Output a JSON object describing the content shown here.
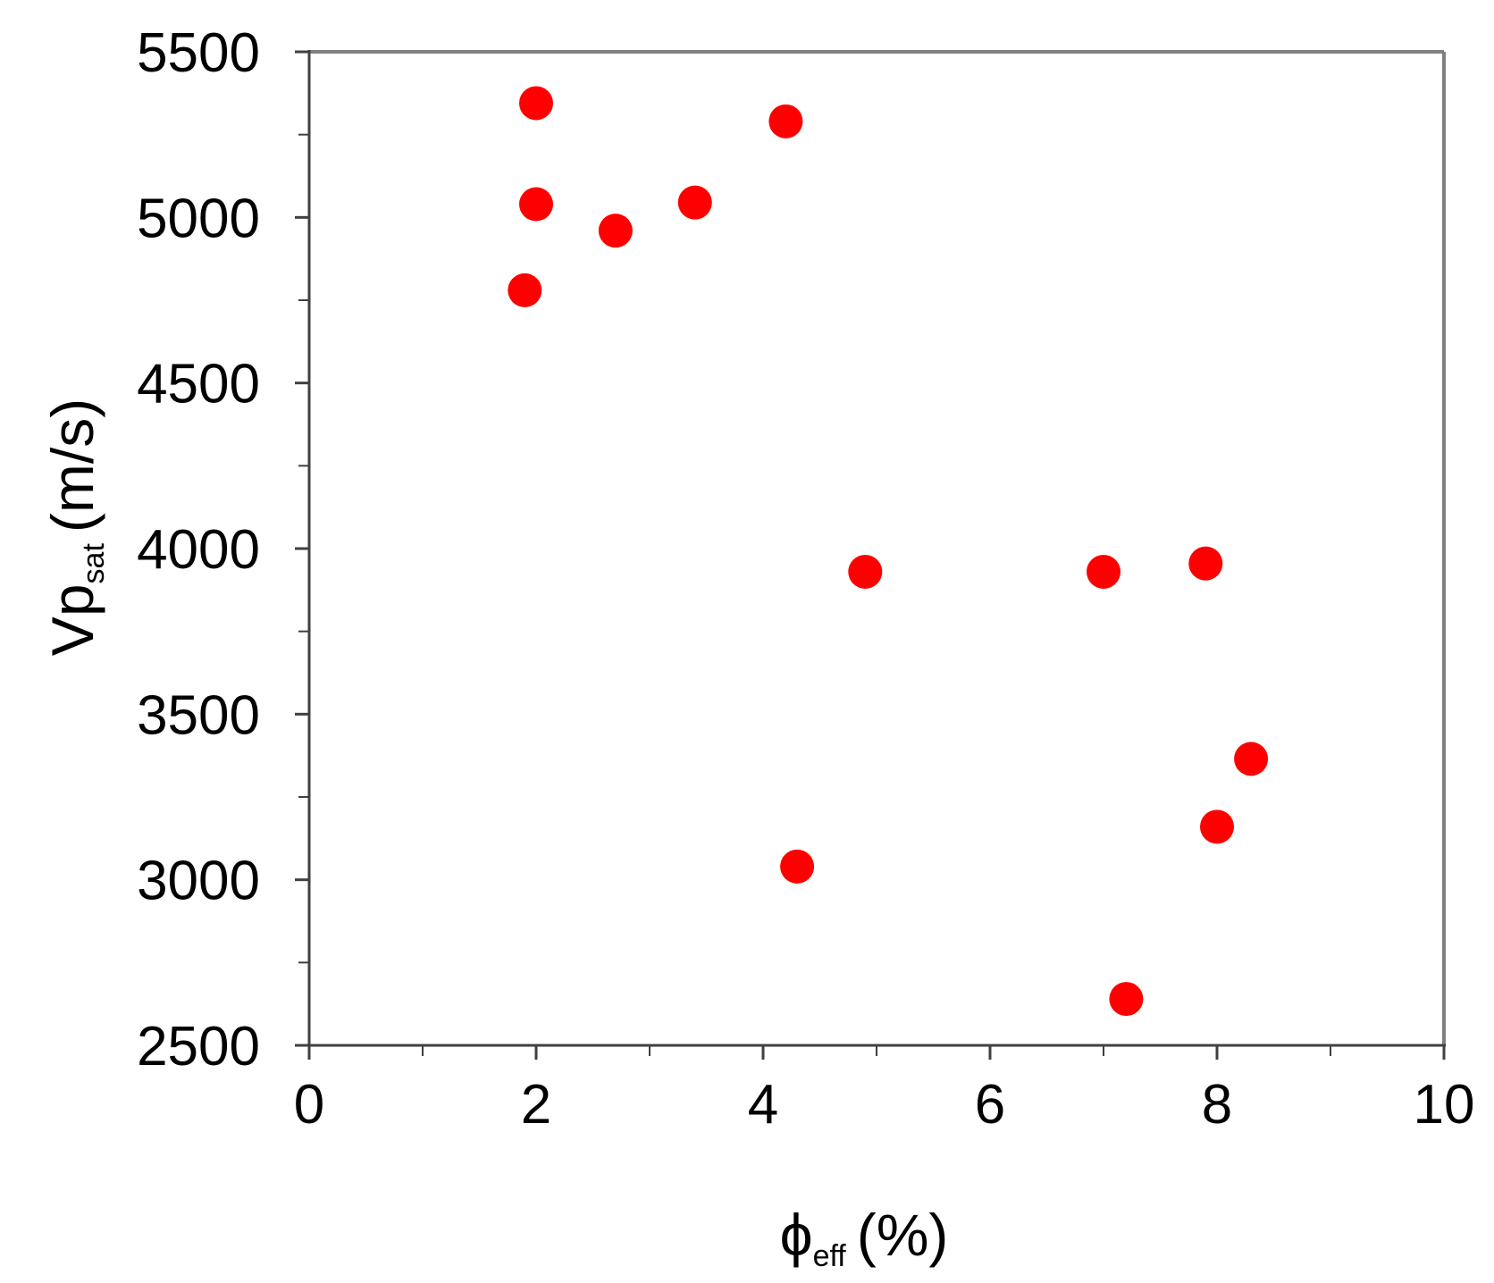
{
  "chart_data": {
    "type": "scatter",
    "xlabel": {
      "main": "ϕ",
      "sub": "eff",
      "unit": "(%)"
    },
    "ylabel": {
      "main": "Vp",
      "sub": "sat",
      "unit": "(m/s)"
    },
    "xlim": [
      0,
      10
    ],
    "ylim": [
      2500,
      5500
    ],
    "x_ticks": [
      0,
      2,
      4,
      6,
      8,
      10
    ],
    "x_minor_ticks": [
      1,
      3,
      5,
      7,
      9
    ],
    "y_ticks": [
      2500,
      3000,
      3500,
      4000,
      4500,
      5000,
      5500
    ],
    "y_minor_ticks": [
      2750,
      3250,
      3750,
      4250,
      4750,
      5250
    ],
    "grid": false,
    "marker_color": "#ff0000",
    "frame_color": "#808080",
    "axis_color": "#404040",
    "points": [
      {
        "x": 2.0,
        "y": 5345
      },
      {
        "x": 4.2,
        "y": 5290
      },
      {
        "x": 2.0,
        "y": 5040
      },
      {
        "x": 3.4,
        "y": 5045
      },
      {
        "x": 2.7,
        "y": 4960
      },
      {
        "x": 1.9,
        "y": 4780
      },
      {
        "x": 4.9,
        "y": 3930
      },
      {
        "x": 7.0,
        "y": 3930
      },
      {
        "x": 7.9,
        "y": 3955
      },
      {
        "x": 8.3,
        "y": 3365
      },
      {
        "x": 8.0,
        "y": 3160
      },
      {
        "x": 4.3,
        "y": 3040
      },
      {
        "x": 7.2,
        "y": 2640
      }
    ]
  }
}
